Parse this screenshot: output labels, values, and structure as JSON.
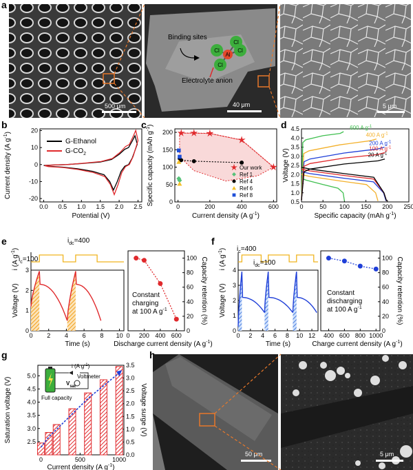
{
  "panels": {
    "a": {
      "label": "a",
      "scale_left": "500 μm",
      "scale_mid": "40 μm",
      "scale_right": "5 μm",
      "binding_sites": "Binding sites",
      "electrolyte_anion": "Electrolyte anion",
      "atoms": {
        "center": "Al",
        "ligand": "Cl"
      }
    },
    "b": {
      "label": "b"
    },
    "c": {
      "label": "c"
    },
    "d": {
      "label": "d"
    },
    "e": {
      "label": "e",
      "ic": "i",
      "ic_sub": "c",
      "ic_val": "=100",
      "idc": "i",
      "idc_sub": "dc",
      "idc_val": "=400",
      "note1": "Constant",
      "note2": "charging",
      "note3": "at 100 A g",
      "note3_sup": "-1"
    },
    "f": {
      "label": "f",
      "ic": "i",
      "ic_sub": "c",
      "ic_val": "=400",
      "idc": "i",
      "idc_sub": "dc",
      "idc_val": "=100",
      "note1": "Constant",
      "note2": "discharging",
      "note3": "at 100 A g",
      "note3_sup": "-1"
    },
    "g": {
      "label": "g",
      "inset_current": "i (A g",
      "inset_current_sup": "-1",
      "inset_current_end": ")",
      "inset_voltmeter": "Voltmeter",
      "inset_vsat": "V",
      "inset_vsat_sub": "sat",
      "inset_full": "Full capacity"
    },
    "h": {
      "label": "h",
      "scale_left": "50 μm",
      "scale_right": "5 μm"
    }
  },
  "chart_data": [
    {
      "id": "b",
      "type": "line",
      "xlabel": "Potential (V)",
      "ylabel": "Current density (A g",
      "ylabel_sup": "-1",
      "ylabel_end": ")",
      "xlim": [
        -0.1,
        2.6
      ],
      "ylim": [
        -22,
        21
      ],
      "xticks": [
        "0.0",
        "0.5",
        "1.0",
        "1.5",
        "2.0",
        "2.5"
      ],
      "xtick_values": [
        0,
        0.5,
        1,
        1.5,
        2,
        2.5
      ],
      "yticks": [
        "-20",
        "-10",
        "0",
        "10",
        "20"
      ],
      "ytick_values": [
        -20,
        -10,
        0,
        10,
        20
      ],
      "legend_position": "top-left",
      "series": [
        {
          "name": "G-Ethanol",
          "color": "#000000"
        },
        {
          "name": "G-CO",
          "name_sub": "2",
          "color": "#e0292c"
        }
      ]
    },
    {
      "id": "c",
      "type": "scatter",
      "xlabel": "Current density (A g",
      "xlabel_sup": "-1",
      "xlabel_end": ")",
      "ylabel": "Specific capacity (mAh g",
      "ylabel_sup": "-1",
      "ylabel_end": ")",
      "xlim": [
        -20,
        620
      ],
      "ylim": [
        0,
        210
      ],
      "xticks": [
        "0",
        "200",
        "400",
        "600"
      ],
      "xtick_values": [
        0,
        200,
        400,
        600
      ],
      "yticks": [
        "0",
        "50",
        "100",
        "150",
        "200"
      ],
      "ytick_values": [
        0,
        50,
        100,
        150,
        200
      ],
      "legend_position": "bottom-right",
      "series": [
        {
          "name": "Our work",
          "color": "#e0292c",
          "marker": "star",
          "x": [
            20,
            100,
            200,
            400,
            600
          ],
          "y": [
            198,
            198,
            197,
            178,
            100
          ]
        },
        {
          "name": "Ref 1",
          "color": "#57c27a",
          "marker": "diamond",
          "x": [
            5,
            10
          ],
          "y": [
            67,
            62
          ]
        },
        {
          "name": "Ref 4",
          "color": "#000000",
          "marker": "circle",
          "x": [
            10,
            20,
            100,
            400
          ],
          "y": [
            125,
            120,
            117,
            113
          ]
        },
        {
          "name": "Ref 6",
          "color": "#f3c12d",
          "marker": "triangle",
          "x": [
            5,
            10
          ],
          "y": [
            115,
            52
          ]
        },
        {
          "name": "Ref 8",
          "color": "#1f4fd8",
          "marker": "square",
          "x": [
            5,
            10
          ],
          "y": [
            148,
            130
          ]
        }
      ]
    },
    {
      "id": "d",
      "type": "line",
      "xlabel": "Specific capacity (mAh g",
      "xlabel_sup": "-1",
      "xlabel_end": ")",
      "ylabel": "Voltage (V)",
      "xlim": [
        0,
        250
      ],
      "ylim": [
        0.5,
        4.5
      ],
      "xticks": [
        "0",
        "50",
        "100",
        "150",
        "200",
        "250"
      ],
      "xtick_values": [
        0,
        50,
        100,
        150,
        200,
        250
      ],
      "yticks": [
        "0.5",
        "1.0",
        "1.5",
        "2.0",
        "2.5",
        "3.0",
        "3.5",
        "4.0",
        "4.5"
      ],
      "ytick_values": [
        0.5,
        1,
        1.5,
        2,
        2.5,
        3,
        3.5,
        4,
        4.5
      ],
      "series": [
        {
          "name": "600 A g",
          "name_sup": "-1",
          "color": "#3fbf4f",
          "capacity": 100,
          "charge_plateau": [
            3.9,
            4.35
          ],
          "discharge_start": 1.8
        },
        {
          "name": "400 A g",
          "name_sup": "-1",
          "color": "#f3b02a",
          "capacity": 178,
          "charge_plateau": [
            3.3,
            3.95
          ],
          "discharge_start": 2.0
        },
        {
          "name": "200 A g",
          "name_sup": "-1",
          "color": "#1f3fd8",
          "capacity": 197,
          "charge_plateau": [
            2.85,
            3.5
          ],
          "discharge_start": 2.15
        },
        {
          "name": "100 A g",
          "name_sup": "-1",
          "color": "#e0292c",
          "capacity": 198,
          "charge_plateau": [
            2.6,
            3.2
          ],
          "discharge_start": 2.3
        },
        {
          "name": "20 A g",
          "name_sup": "-1",
          "color": "#000000",
          "capacity": 198,
          "charge_plateau": [
            2.3,
            2.85
          ],
          "discharge_start": 2.4
        }
      ]
    },
    {
      "id": "e_profile",
      "type": "line",
      "xlabel": "Time (s)",
      "ylabel": "Voltage (V)",
      "ylabel2": "i (A g",
      "ylabel2_sup": "-1",
      "ylabel2_end": ")",
      "xlim": [
        0,
        10.5
      ],
      "ylim": [
        0,
        3
      ],
      "xticks": [
        "0",
        "2",
        "4",
        "6",
        "8",
        "10"
      ],
      "xtick_values": [
        0,
        2,
        4,
        6,
        8,
        10
      ],
      "yticks": [
        "0",
        "1",
        "2",
        "3"
      ],
      "ytick_values": [
        0,
        1,
        2,
        3
      ],
      "color": "#e0292c",
      "shade_color": "#f3a01a",
      "cycles": [
        [
          0.0,
          0.95,
          4.1
        ],
        [
          4.1,
          5.05,
          7.9
        ]
      ],
      "y_start": 1.2,
      "y_peak": 2.95,
      "y_after_drop": 2.3,
      "y_end": 0.5
    },
    {
      "id": "e_retention",
      "type": "scatter",
      "xlabel": "Discharge current density (A g",
      "xlabel_sup": "-1",
      "xlabel_end": ")",
      "ylabel": "Capacity retention (%)",
      "xlim": [
        0,
        700
      ],
      "ylim": [
        0,
        110
      ],
      "xticks": [
        "0",
        "200",
        "400",
        "600"
      ],
      "xtick_values": [
        0,
        200,
        400,
        600
      ],
      "yticks": [
        "0",
        "20",
        "40",
        "60",
        "80",
        "100"
      ],
      "ytick_values": [
        0,
        20,
        40,
        60,
        80,
        100
      ],
      "color": "#e0292c",
      "x": [
        100,
        200,
        400,
        600
      ],
      "y": [
        100,
        97,
        65,
        16
      ]
    },
    {
      "id": "f_profile",
      "type": "line",
      "xlabel": "Time (s)",
      "ylabel": "Voltage (V)",
      "ylabel2": "i (A g",
      "ylabel2_sup": "-1",
      "ylabel2_end": ")",
      "xlim": [
        0,
        13
      ],
      "ylim": [
        0,
        4
      ],
      "xticks": [
        "0",
        "2",
        "4",
        "6",
        "8",
        "10",
        "12"
      ],
      "xtick_values": [
        0,
        2,
        4,
        6,
        8,
        10,
        12
      ],
      "yticks": [
        "0",
        "1",
        "2",
        "3",
        "4"
      ],
      "ytick_values": [
        0,
        1,
        2,
        3,
        4
      ],
      "color": "#1f3fd8",
      "shade_color": "#4a7fe0",
      "cycles": [
        [
          0.0,
          0.6,
          4.3
        ],
        [
          4.3,
          4.9,
          8.9
        ],
        [
          8.9,
          9.5,
          12.8
        ]
      ],
      "y_start": 0.3,
      "y_peak": 3.9,
      "y_after_drop": 2.2,
      "y_end": 1.2
    },
    {
      "id": "f_retention",
      "type": "scatter",
      "xlabel": "Charge current density (A g",
      "xlabel_sup": "-1",
      "xlabel_end": ")",
      "ylabel": "Capacity retention (%)",
      "xlim": [
        300,
        1050
      ],
      "ylim": [
        0,
        110
      ],
      "xticks": [
        "400",
        "600",
        "800",
        "1000"
      ],
      "xtick_values": [
        400,
        600,
        800,
        1000
      ],
      "yticks": [
        "0",
        "20",
        "40",
        "60",
        "80",
        "100"
      ],
      "ytick_values": [
        0,
        20,
        40,
        60,
        80,
        100
      ],
      "color": "#1f3fd8",
      "x": [
        400,
        600,
        800,
        1000
      ],
      "y": [
        100,
        96,
        89,
        85
      ]
    },
    {
      "id": "g",
      "type": "bar",
      "xlabel": "Current density (A g",
      "xlabel_sup": "-1",
      "xlabel_end": ")",
      "ylabel": "Saturation voltage (V)",
      "ylabel2": "Voltage surge (V)",
      "xlim": [
        -40,
        1060
      ],
      "ylim": [
        2.0,
        5.4
      ],
      "ylim2": [
        0,
        3.5
      ],
      "xticks": [
        "0",
        "500",
        "1000"
      ],
      "xtick_values": [
        0,
        500,
        1000
      ],
      "yticks": [
        "2.5",
        "3.0",
        "3.5",
        "4.0",
        "4.5",
        "5.0"
      ],
      "ytick_values": [
        2.5,
        3,
        3.5,
        4,
        4.5,
        5
      ],
      "yticks2": [
        "0.0",
        "0.5",
        "1.0",
        "1.5",
        "2.0",
        "2.5",
        "3.0",
        "3.5"
      ],
      "ytick2_values": [
        0,
        0.5,
        1,
        1.5,
        2,
        2.5,
        3,
        3.5
      ],
      "bar_color": "#e0292c",
      "line_color": "#1f3fd8",
      "x": [
        0,
        100,
        200,
        400,
        600,
        800,
        1000
      ],
      "values": [
        2.45,
        2.85,
        3.15,
        3.75,
        4.35,
        4.85,
        5.35
      ],
      "surge": [
        0.3,
        0.7,
        1.0,
        1.6,
        2.2,
        2.7,
        3.2
      ]
    }
  ]
}
